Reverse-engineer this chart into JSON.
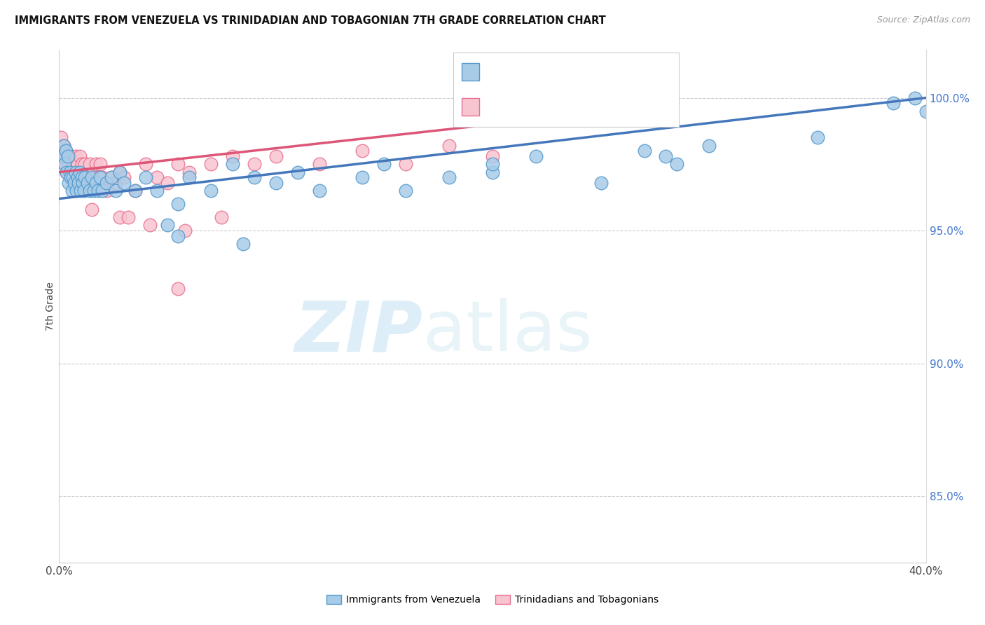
{
  "title": "IMMIGRANTS FROM VENEZUELA VS TRINIDADIAN AND TOBAGONIAN 7TH GRADE CORRELATION CHART",
  "source": "Source: ZipAtlas.com",
  "ylabel": "7th Grade",
  "ylabel_right_ticks": [
    85.0,
    90.0,
    95.0,
    100.0
  ],
  "xmin": 0.0,
  "xmax": 40.0,
  "ymin": 82.5,
  "ymax": 101.8,
  "legend_label_blue": "Immigrants from Venezuela",
  "legend_label_pink": "Trinidadians and Tobagonians",
  "blue_color": "#a8cce8",
  "blue_edge_color": "#5599cc",
  "blue_line_color": "#4477bb",
  "pink_color": "#f7c5d0",
  "pink_edge_color": "#e87090",
  "pink_line_color": "#dd5577",
  "watermark_zip": "ZIP",
  "watermark_atlas": "atlas",
  "watermark_color": "#ddeef8",
  "blue_scatter_x": [
    0.15,
    0.2,
    0.25,
    0.3,
    0.35,
    0.4,
    0.45,
    0.5,
    0.55,
    0.6,
    0.65,
    0.7,
    0.75,
    0.8,
    0.85,
    0.9,
    0.95,
    1.0,
    1.05,
    1.1,
    1.15,
    1.2,
    1.3,
    1.4,
    1.5,
    1.6,
    1.7,
    1.8,
    1.9,
    2.0,
    2.2,
    2.4,
    2.6,
    2.8,
    3.0,
    3.5,
    4.0,
    4.5,
    5.0,
    5.5,
    6.0,
    7.0,
    8.0,
    9.0,
    10.0,
    11.0,
    12.0,
    14.0,
    15.0,
    16.0,
    18.0,
    20.0,
    22.0,
    25.0,
    27.0,
    28.5,
    30.0,
    35.0,
    38.5,
    39.5,
    40.0,
    5.5,
    8.5,
    20.0,
    28.0
  ],
  "blue_scatter_y": [
    97.8,
    98.2,
    97.5,
    98.0,
    97.2,
    97.8,
    96.8,
    97.2,
    97.0,
    96.5,
    97.0,
    96.8,
    97.2,
    96.5,
    97.0,
    96.8,
    97.2,
    96.5,
    97.0,
    96.8,
    96.5,
    97.0,
    96.8,
    96.5,
    97.0,
    96.5,
    96.8,
    96.5,
    97.0,
    96.5,
    96.8,
    97.0,
    96.5,
    97.2,
    96.8,
    96.5,
    97.0,
    96.5,
    95.2,
    96.0,
    97.0,
    96.5,
    97.5,
    97.0,
    96.8,
    97.2,
    96.5,
    97.0,
    97.5,
    96.5,
    97.0,
    97.2,
    97.8,
    96.8,
    98.0,
    97.5,
    98.2,
    98.5,
    99.8,
    100.0,
    99.5,
    94.8,
    94.5,
    97.5,
    97.8
  ],
  "pink_scatter_x": [
    0.1,
    0.15,
    0.2,
    0.25,
    0.3,
    0.35,
    0.4,
    0.45,
    0.5,
    0.55,
    0.6,
    0.65,
    0.7,
    0.75,
    0.8,
    0.85,
    0.9,
    0.95,
    1.0,
    1.05,
    1.1,
    1.2,
    1.3,
    1.4,
    1.5,
    1.6,
    1.7,
    1.8,
    1.9,
    2.0,
    2.2,
    2.4,
    2.6,
    2.8,
    3.0,
    3.5,
    4.0,
    4.5,
    5.0,
    5.5,
    6.0,
    7.0,
    8.0,
    9.0,
    10.0,
    12.0,
    14.0,
    16.0,
    18.0,
    20.0,
    2.8,
    4.2,
    5.8,
    7.5,
    1.5,
    3.2,
    5.5
  ],
  "pink_scatter_y": [
    98.5,
    97.8,
    98.2,
    97.5,
    98.0,
    97.2,
    97.8,
    97.5,
    97.2,
    97.8,
    97.0,
    97.5,
    97.2,
    97.8,
    97.0,
    97.5,
    97.2,
    97.8,
    97.0,
    97.5,
    97.0,
    97.5,
    97.0,
    97.5,
    97.0,
    97.2,
    97.5,
    97.0,
    97.5,
    97.0,
    96.5,
    97.0,
    96.8,
    97.2,
    97.0,
    96.5,
    97.5,
    97.0,
    96.8,
    97.5,
    97.2,
    97.5,
    97.8,
    97.5,
    97.8,
    97.5,
    98.0,
    97.5,
    98.2,
    97.8,
    95.5,
    95.2,
    95.0,
    95.5,
    95.8,
    95.5,
    92.8
  ],
  "blue_reg_x0": 0.0,
  "blue_reg_x1": 40.0,
  "blue_reg_y0": 96.2,
  "blue_reg_y1": 100.0,
  "pink_reg_x0": 0.0,
  "pink_reg_x1": 20.0,
  "pink_reg_y0": 97.2,
  "pink_reg_y1": 99.0
}
